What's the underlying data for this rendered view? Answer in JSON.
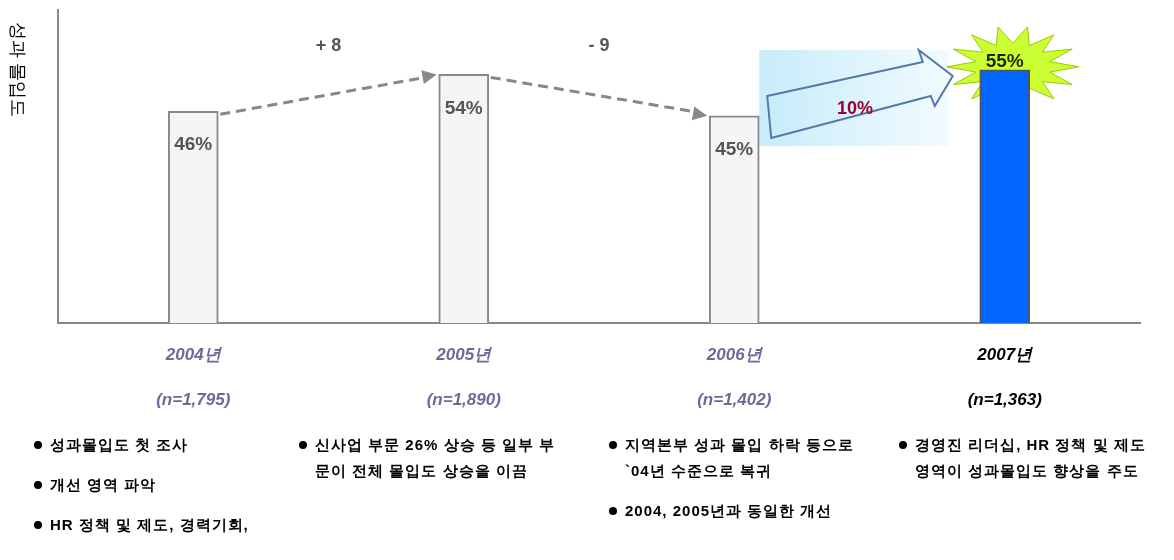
{
  "chart_data": {
    "type": "bar",
    "ylabel": "성과 몰입도",
    "categories": [
      "2004년",
      "2005년",
      "2006년",
      "2007년"
    ],
    "values": [
      46,
      54,
      45,
      55
    ],
    "colors": [
      "#f5f5f5",
      "#f5f5f5",
      "#f5f5f5",
      "#0066ff"
    ],
    "value_labels": [
      "46%",
      "54%",
      "45%",
      "55%"
    ],
    "ylim": [
      0,
      68
    ],
    "tick_labels": "x",
    "grid": false,
    "legend": false,
    "annotations": [
      "+ 8",
      "- 9",
      "10%",
      "(n=1,795)",
      "(n=1,890)",
      "(n=1,402)",
      "(n=1,363)",
      "성과몰입도 첫 조사",
      "개선 영역 파악",
      "HR 정책 및 제도, 경력기회,",
      "신사업 부문 26% 상승 등 일부 부문이 전체 몰입도 상승을 이끔",
      "지역본부 성과 몰입 하락 등으로 `04년 수준으로 복귀",
      "2004, 2005년과 동일한 개선",
      "경영진 리더십, HR 정책 및 제도 영역이 성과몰입도 향상을 주도"
    ]
  }
}
